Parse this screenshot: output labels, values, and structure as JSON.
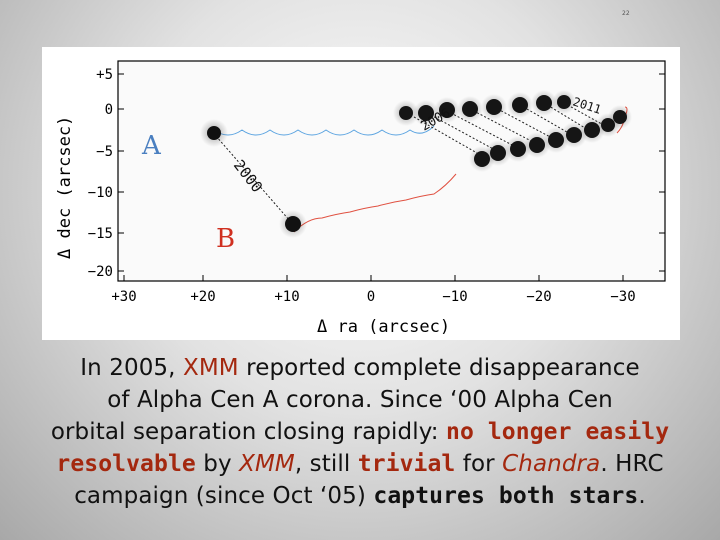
{
  "slide": {
    "number": "22"
  },
  "figure": {
    "y_axis_label": "Δ dec  (arcsec)",
    "x_axis_label": "Δ ra  (arcsec)",
    "y_ticks": [
      "+5",
      "0",
      "−5",
      "−10",
      "−15",
      "−20"
    ],
    "x_ticks": [
      "+30",
      "+20",
      "+10",
      "0",
      "−10",
      "−20",
      "−30"
    ],
    "star_a_label": "A",
    "star_b_label": "B",
    "epoch_2000": "2000",
    "epoch_2006": "2006",
    "epoch_2011": "2011",
    "colors": {
      "star_label": "#4a7fc0",
      "b_label": "#d03020",
      "track_a": "#5aa3e0",
      "track_b": "#e05040"
    }
  },
  "caption": {
    "l1_a": "In 2005, ",
    "l1_b": "XMM",
    "l1_c": " reported complete disappearance",
    "l2_a": "of Alpha Cen A corona. Since ‘00  Alpha Cen",
    "l3_a": "orbital separation closing rapidly: ",
    "l3_b": "no longer easily",
    "l4_a": "resolvable",
    "l4_b": " by ",
    "l4_c": "XMM",
    "l4_d": ", still ",
    "l4_e": "trivial",
    "l4_f": " for ",
    "l4_g": "Chandra",
    "l4_h": ".  HRC",
    "l5_a": "campaign (since Oct ‘05) ",
    "l5_b": "captures both stars",
    "l5_c": "."
  }
}
